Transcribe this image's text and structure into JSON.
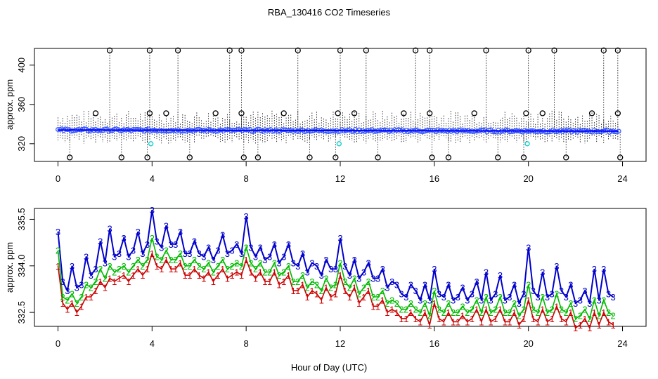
{
  "chart_data": [
    {
      "type": "scatter",
      "title": "RBA_130416  CO2 Timeseries",
      "ylabel": "approx. ppm",
      "xlabel": "",
      "xlim": [
        -1,
        25
      ],
      "ylim": [
        302,
        417
      ],
      "x_ticks": [
        "0",
        "4",
        "8",
        "12",
        "16",
        "20",
        "24"
      ],
      "y_ticks": [
        "320",
        "360",
        "400"
      ],
      "mean_series_color": "#0000ff",
      "points_color": "#3355ff",
      "outlier_color": "#000000",
      "cyan_color": "#00cccc",
      "high_outliers_x": [
        2.2,
        3.9,
        5.1,
        7.3,
        7.8,
        10.2,
        12.0,
        13.1,
        15.2,
        15.8,
        18.2,
        20.0,
        21.1,
        23.2,
        23.8
      ],
      "high_outliers_y": 415,
      "low_outliers_x": [
        0.5,
        2.7,
        3.8,
        5.6,
        7.9,
        8.5,
        10.7,
        11.8,
        13.6,
        15.9,
        16.6,
        18.7,
        19.8,
        21.6,
        23.9
      ],
      "low_outliers_y": 306,
      "mid_outliers_x": [
        1.6,
        3.9,
        4.6,
        6.7,
        7.8,
        9.6,
        11.9,
        12.6,
        14.7,
        15.8,
        17.7,
        19.9,
        20.6,
        22.7,
        23.8
      ],
      "mid_outliers_y": 351,
      "cyan_points": [
        [
          3.95,
          320
        ],
        [
          11.95,
          320
        ],
        [
          19.95,
          320
        ]
      ]
    },
    {
      "type": "line",
      "title": "",
      "ylabel": "approx. ppm",
      "xlabel": "Hour of Day (UTC)",
      "xlim": [
        -1,
        25
      ],
      "ylim": [
        332.05,
        335.85
      ],
      "x_ticks": [
        "0",
        "4",
        "8",
        "12",
        "16",
        "20",
        "24"
      ],
      "y_ticks": [
        "332.5",
        "334.0",
        "335.5"
      ],
      "series": [
        {
          "name": "3",
          "color": "#0000cc",
          "x": [
            0.0,
            0.2,
            0.4,
            0.6,
            0.8,
            1.0,
            1.2,
            1.4,
            1.6,
            1.8,
            2.0,
            2.2,
            2.4,
            2.6,
            2.8,
            3.0,
            3.2,
            3.4,
            3.6,
            3.8,
            4.0,
            4.2,
            4.4,
            4.6,
            4.8,
            5.0,
            5.2,
            5.4,
            5.6,
            5.8,
            6.0,
            6.2,
            6.4,
            6.6,
            6.8,
            7.0,
            7.2,
            7.4,
            7.6,
            7.8,
            8.0,
            8.2,
            8.4,
            8.6,
            8.8,
            9.0,
            9.2,
            9.4,
            9.6,
            9.8,
            10.0,
            10.2,
            10.4,
            10.6,
            10.8,
            11.0,
            11.2,
            11.4,
            11.6,
            11.8,
            12.0,
            12.2,
            12.4,
            12.6,
            12.8,
            13.0,
            13.2,
            13.4,
            13.6,
            13.8,
            14.0,
            14.2,
            14.4,
            14.6,
            14.8,
            15.0,
            15.2,
            15.4,
            15.6,
            15.8,
            16.0,
            16.2,
            16.4,
            16.6,
            16.8,
            17.0,
            17.2,
            17.4,
            17.6,
            17.8,
            18.0,
            18.2,
            18.4,
            18.6,
            18.8,
            19.0,
            19.2,
            19.4,
            19.6,
            19.8,
            20.0,
            20.2,
            20.4,
            20.6,
            20.8,
            21.0,
            21.2,
            21.4,
            21.6,
            21.8,
            22.0,
            22.2,
            22.4,
            22.6,
            22.8,
            23.0,
            23.2,
            23.4,
            23.6
          ],
          "values": [
            335.1,
            333.5,
            333.2,
            334.0,
            333.3,
            333.4,
            334.3,
            333.7,
            333.9,
            334.8,
            334.1,
            335.2,
            334.3,
            334.4,
            334.9,
            334.3,
            334.5,
            335.1,
            334.4,
            334.7,
            335.8,
            334.8,
            334.6,
            335.3,
            334.7,
            334.7,
            335.1,
            334.4,
            334.4,
            334.8,
            334.4,
            334.3,
            334.6,
            334.2,
            334.5,
            335.0,
            334.4,
            334.5,
            334.7,
            334.4,
            335.6,
            334.6,
            334.3,
            334.6,
            334.2,
            334.3,
            334.7,
            334.1,
            334.3,
            334.7,
            334.1,
            334.0,
            334.4,
            333.8,
            334.1,
            334.0,
            333.7,
            334.2,
            333.9,
            333.9,
            334.9,
            334.0,
            333.7,
            334.2,
            333.6,
            333.8,
            334.1,
            333.6,
            333.6,
            333.9,
            333.3,
            333.5,
            333.4,
            333.1,
            333.0,
            333.4,
            333.2,
            332.9,
            333.4,
            332.9,
            333.9,
            333.1,
            333.0,
            333.4,
            332.9,
            333.0,
            333.3,
            332.9,
            333.1,
            333.5,
            332.9,
            333.8,
            332.9,
            333.1,
            333.7,
            332.9,
            333.0,
            333.4,
            332.8,
            333.1,
            334.6,
            333.2,
            333.0,
            333.8,
            333.0,
            333.1,
            334.0,
            333.2,
            333.0,
            333.4,
            332.8,
            332.9,
            333.2,
            332.8,
            333.9,
            332.9,
            333.9,
            333.1,
            333.0
          ]
        },
        {
          "name": "2",
          "color": "#00bb00",
          "x": [
            0.0,
            0.2,
            0.4,
            0.6,
            0.8,
            1.0,
            1.2,
            1.4,
            1.6,
            1.8,
            2.0,
            2.2,
            2.4,
            2.6,
            2.8,
            3.0,
            3.2,
            3.4,
            3.6,
            3.8,
            4.0,
            4.2,
            4.4,
            4.6,
            4.8,
            5.0,
            5.2,
            5.4,
            5.6,
            5.8,
            6.0,
            6.2,
            6.4,
            6.6,
            6.8,
            7.0,
            7.2,
            7.4,
            7.6,
            7.8,
            8.0,
            8.2,
            8.4,
            8.6,
            8.8,
            9.0,
            9.2,
            9.4,
            9.6,
            9.8,
            10.0,
            10.2,
            10.4,
            10.6,
            10.8,
            11.0,
            11.2,
            11.4,
            11.6,
            11.8,
            12.0,
            12.2,
            12.4,
            12.6,
            12.8,
            13.0,
            13.2,
            13.4,
            13.6,
            13.8,
            14.0,
            14.2,
            14.4,
            14.6,
            14.8,
            15.0,
            15.2,
            15.4,
            15.6,
            15.8,
            16.0,
            16.2,
            16.4,
            16.6,
            16.8,
            17.0,
            17.2,
            17.4,
            17.6,
            17.8,
            18.0,
            18.2,
            18.4,
            18.6,
            18.8,
            19.0,
            19.2,
            19.4,
            19.6,
            19.8,
            20.0,
            20.2,
            20.4,
            20.6,
            20.8,
            21.0,
            21.2,
            21.4,
            21.6,
            21.8,
            22.0,
            22.2,
            22.4,
            22.6,
            22.8,
            23.0,
            23.2,
            23.4,
            23.6
          ],
          "values": [
            334.5,
            333.0,
            332.9,
            333.1,
            332.8,
            333.0,
            333.4,
            333.3,
            333.5,
            333.9,
            333.6,
            334.0,
            333.8,
            333.9,
            334.0,
            333.8,
            334.0,
            334.2,
            334.0,
            334.2,
            334.9,
            334.3,
            334.2,
            334.5,
            334.2,
            334.2,
            334.4,
            334.0,
            334.0,
            334.2,
            334.0,
            333.9,
            334.1,
            333.8,
            334.0,
            334.2,
            333.9,
            334.0,
            334.1,
            334.0,
            334.6,
            334.1,
            333.9,
            334.1,
            333.8,
            333.8,
            334.1,
            333.7,
            333.8,
            334.0,
            333.5,
            333.5,
            333.7,
            333.3,
            333.5,
            333.4,
            333.2,
            333.6,
            333.3,
            333.4,
            334.1,
            333.5,
            333.3,
            333.6,
            333.1,
            333.3,
            333.5,
            333.0,
            333.0,
            333.2,
            332.8,
            332.9,
            332.8,
            332.6,
            332.6,
            332.8,
            332.6,
            332.5,
            332.8,
            332.4,
            333.2,
            332.6,
            332.5,
            332.8,
            332.5,
            332.5,
            332.7,
            332.5,
            332.6,
            332.9,
            332.5,
            333.0,
            332.5,
            332.6,
            333.0,
            332.5,
            332.5,
            332.8,
            332.4,
            332.6,
            333.4,
            332.6,
            332.5,
            333.0,
            332.5,
            332.6,
            333.1,
            332.6,
            332.5,
            332.8,
            332.3,
            332.4,
            332.6,
            332.3,
            332.9,
            332.4,
            332.9,
            332.5,
            332.4
          ]
        },
        {
          "name": "1",
          "color": "#cc0000",
          "x": [
            0.0,
            0.2,
            0.4,
            0.6,
            0.8,
            1.0,
            1.2,
            1.4,
            1.6,
            1.8,
            2.0,
            2.2,
            2.4,
            2.6,
            2.8,
            3.0,
            3.2,
            3.4,
            3.6,
            3.8,
            4.0,
            4.2,
            4.4,
            4.6,
            4.8,
            5.0,
            5.2,
            5.4,
            5.6,
            5.8,
            6.0,
            6.2,
            6.4,
            6.6,
            6.8,
            7.0,
            7.2,
            7.4,
            7.6,
            7.8,
            8.0,
            8.2,
            8.4,
            8.6,
            8.8,
            9.0,
            9.2,
            9.4,
            9.6,
            9.8,
            10.0,
            10.2,
            10.4,
            10.6,
            10.8,
            11.0,
            11.2,
            11.4,
            11.6,
            11.8,
            12.0,
            12.2,
            12.4,
            12.6,
            12.8,
            13.0,
            13.2,
            13.4,
            13.6,
            13.8,
            14.0,
            14.2,
            14.4,
            14.6,
            14.8,
            15.0,
            15.2,
            15.4,
            15.6,
            15.8,
            16.0,
            16.2,
            16.4,
            16.6,
            16.8,
            17.0,
            17.2,
            17.4,
            17.6,
            17.8,
            18.0,
            18.2,
            18.4,
            18.6,
            18.8,
            19.0,
            19.2,
            19.4,
            19.6,
            19.8,
            20.0,
            20.2,
            20.4,
            20.6,
            20.8,
            21.0,
            21.2,
            21.4,
            21.6,
            21.8,
            22.0,
            22.2,
            22.4,
            22.6,
            22.8,
            23.0,
            23.2,
            23.4,
            23.6
          ],
          "values": [
            334.0,
            332.8,
            332.6,
            332.8,
            332.5,
            332.7,
            333.0,
            333.0,
            333.2,
            333.5,
            333.3,
            333.6,
            333.5,
            333.6,
            333.7,
            333.5,
            333.7,
            333.9,
            333.7,
            333.9,
            334.4,
            334.0,
            333.9,
            334.2,
            333.9,
            333.9,
            334.1,
            333.7,
            333.7,
            333.9,
            333.7,
            333.6,
            333.8,
            333.5,
            333.7,
            333.9,
            333.6,
            333.7,
            333.8,
            333.7,
            334.2,
            333.8,
            333.6,
            333.8,
            333.5,
            333.5,
            333.8,
            333.4,
            333.5,
            333.7,
            333.2,
            333.2,
            333.4,
            333.0,
            333.2,
            333.1,
            332.9,
            333.3,
            333.0,
            333.1,
            333.7,
            333.2,
            333.0,
            333.3,
            332.8,
            333.0,
            333.2,
            332.7,
            332.7,
            332.9,
            332.5,
            332.6,
            332.5,
            332.3,
            332.3,
            332.5,
            332.3,
            332.2,
            332.5,
            332.1,
            332.8,
            332.3,
            332.2,
            332.5,
            332.2,
            332.2,
            332.4,
            332.2,
            332.3,
            332.6,
            332.2,
            332.6,
            332.2,
            332.3,
            332.6,
            332.2,
            332.2,
            332.5,
            332.1,
            332.3,
            332.9,
            332.3,
            332.2,
            332.6,
            332.2,
            332.3,
            332.7,
            332.3,
            332.2,
            332.5,
            332.0,
            332.1,
            332.3,
            332.0,
            332.5,
            332.1,
            332.5,
            332.2,
            332.1
          ]
        }
      ]
    }
  ]
}
